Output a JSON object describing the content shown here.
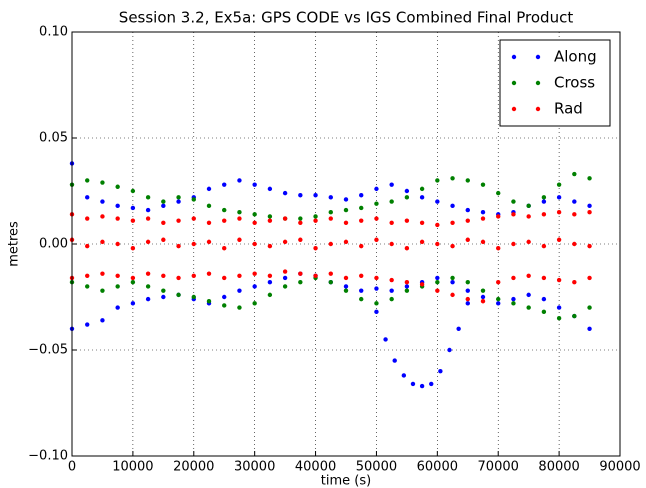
{
  "chart_data": {
    "type": "scatter",
    "title": "Session 3.2, Ex5a: GPS CODE vs IGS Combined Final Product",
    "x_label": "time (s)",
    "y_label": "metres",
    "xlim": [
      0,
      90000
    ],
    "xticks": [
      0,
      10000,
      20000,
      30000,
      40000,
      50000,
      60000,
      70000,
      80000,
      90000
    ],
    "ylim": [
      -0.1,
      0.1
    ],
    "yticks": [
      {
        "value": -0.1,
        "label": "−0.10"
      },
      {
        "value": -0.05,
        "label": "−0.05"
      },
      {
        "value": 0,
        "label": "0.00"
      },
      {
        "value": 0.05,
        "label": "0.05"
      },
      {
        "value": 0.1,
        "label": "0.10"
      }
    ],
    "grid": true,
    "legend": "upper right",
    "series": [
      {
        "name": "Along",
        "color": "#0000ff",
        "x": [
          0,
          2500,
          5000,
          7500,
          10000,
          12500,
          15000,
          17500,
          20000,
          22500,
          25000,
          27500,
          30000,
          32500,
          35000,
          37500,
          40000,
          42500,
          45000,
          47500,
          50000,
          52500,
          55000,
          57500,
          60000,
          62500,
          65000,
          67500,
          70000,
          72500,
          75000,
          77500,
          80000,
          82500,
          85000,
          0,
          2500,
          5000,
          7500,
          10000,
          12500,
          15000,
          17500,
          20000,
          22500,
          25000,
          27500,
          30000,
          32500,
          35000,
          37500,
          40000,
          42500,
          45000,
          47500,
          50000,
          52500,
          55000,
          57500,
          60000,
          62500,
          65000,
          67500,
          70000,
          72500,
          75000,
          77500,
          80000,
          82500,
          85000,
          50000,
          51500,
          53000,
          54500,
          56000,
          57500,
          59000,
          60500,
          62000,
          63500,
          65000
        ],
        "values": [
          0.038,
          0.022,
          0.02,
          0.018,
          0.017,
          0.016,
          0.018,
          0.02,
          0.022,
          0.026,
          0.028,
          0.03,
          0.028,
          0.026,
          0.024,
          0.023,
          0.023,
          0.022,
          0.021,
          0.023,
          0.026,
          0.028,
          0.025,
          0.022,
          0.02,
          0.018,
          0.016,
          0.015,
          0.014,
          0.015,
          0.018,
          0.02,
          0.022,
          0.02,
          0.018,
          -0.04,
          -0.038,
          -0.036,
          -0.03,
          -0.028,
          -0.026,
          -0.025,
          -0.024,
          -0.026,
          -0.028,
          -0.025,
          -0.022,
          -0.02,
          -0.018,
          -0.016,
          -0.014,
          -0.015,
          -0.018,
          -0.02,
          -0.022,
          -0.021,
          -0.022,
          -0.02,
          -0.018,
          -0.016,
          -0.018,
          -0.022,
          -0.025,
          -0.028,
          -0.026,
          -0.024,
          -0.026,
          -0.03,
          -0.034,
          -0.04,
          -0.032,
          -0.045,
          -0.055,
          -0.062,
          -0.066,
          -0.067,
          -0.066,
          -0.06,
          -0.05,
          -0.04,
          -0.028
        ]
      },
      {
        "name": "Cross",
        "color": "#008000",
        "x": [
          0,
          2500,
          5000,
          7500,
          10000,
          12500,
          15000,
          17500,
          20000,
          22500,
          25000,
          27500,
          30000,
          32500,
          35000,
          37500,
          40000,
          42500,
          45000,
          47500,
          50000,
          52500,
          55000,
          57500,
          60000,
          62500,
          65000,
          67500,
          70000,
          72500,
          75000,
          77500,
          80000,
          82500,
          85000,
          0,
          2500,
          5000,
          7500,
          10000,
          12500,
          15000,
          17500,
          20000,
          22500,
          25000,
          27500,
          30000,
          32500,
          35000,
          37500,
          40000,
          42500,
          45000,
          47500,
          50000,
          52500,
          55000,
          57500,
          60000,
          62500,
          65000,
          67500,
          70000,
          72500,
          75000,
          77500,
          80000,
          82500,
          85000
        ],
        "values": [
          0.028,
          0.03,
          0.029,
          0.027,
          0.025,
          0.022,
          0.02,
          0.022,
          0.021,
          0.018,
          0.016,
          0.015,
          0.014,
          0.013,
          0.012,
          0.012,
          0.013,
          0.015,
          0.016,
          0.017,
          0.019,
          0.02,
          0.022,
          0.026,
          0.03,
          0.031,
          0.03,
          0.028,
          0.024,
          0.02,
          0.018,
          0.022,
          0.028,
          0.033,
          0.031,
          -0.018,
          -0.02,
          -0.022,
          -0.02,
          -0.018,
          -0.02,
          -0.022,
          -0.024,
          -0.025,
          -0.027,
          -0.029,
          -0.03,
          -0.028,
          -0.024,
          -0.02,
          -0.018,
          -0.016,
          -0.018,
          -0.022,
          -0.026,
          -0.028,
          -0.026,
          -0.022,
          -0.02,
          -0.018,
          -0.016,
          -0.018,
          -0.022,
          -0.026,
          -0.028,
          -0.03,
          -0.032,
          -0.035,
          -0.034,
          -0.03
        ]
      },
      {
        "name": "Rad",
        "color": "#ff0000",
        "x": [
          0,
          2500,
          5000,
          7500,
          10000,
          12500,
          15000,
          17500,
          20000,
          22500,
          25000,
          27500,
          30000,
          32500,
          35000,
          37500,
          40000,
          42500,
          45000,
          47500,
          50000,
          52500,
          55000,
          57500,
          60000,
          62500,
          65000,
          67500,
          70000,
          72500,
          75000,
          77500,
          80000,
          82500,
          85000,
          0,
          2500,
          5000,
          7500,
          10000,
          12500,
          15000,
          17500,
          20000,
          22500,
          25000,
          27500,
          30000,
          32500,
          35000,
          37500,
          40000,
          42500,
          45000,
          47500,
          50000,
          52500,
          55000,
          57500,
          60000,
          62500,
          65000,
          67500,
          70000,
          72500,
          75000,
          77500,
          80000,
          82500,
          85000,
          0,
          2500,
          5000,
          7500,
          10000,
          12500,
          15000,
          17500,
          20000,
          22500,
          25000,
          27500,
          30000,
          32500,
          35000,
          37500,
          40000,
          42500,
          45000,
          47500,
          50000,
          52500,
          55000,
          57500,
          60000,
          62500,
          65000,
          67500,
          70000,
          72500,
          75000,
          77500,
          80000,
          82500,
          85000
        ],
        "values": [
          0.014,
          0.012,
          0.013,
          0.012,
          0.011,
          0.012,
          0.01,
          0.011,
          0.012,
          0.01,
          0.011,
          0.012,
          0.01,
          0.011,
          0.012,
          0.01,
          0.011,
          0.012,
          0.01,
          0.011,
          0.012,
          0.01,
          0.011,
          0.01,
          0.009,
          0.01,
          0.011,
          0.012,
          0.013,
          0.014,
          0.013,
          0.014,
          0.015,
          0.014,
          0.015,
          0.002,
          -0.001,
          0.001,
          0,
          -0.002,
          0.001,
          0.002,
          -0.001,
          0,
          0.001,
          -0.002,
          0.002,
          0,
          -0.001,
          0.001,
          0.002,
          -0.002,
          0,
          0.001,
          -0.001,
          0.002,
          0,
          -0.002,
          0.001,
          0,
          -0.001,
          0.002,
          0.001,
          -0.002,
          0,
          0.001,
          -0.001,
          0.002,
          0,
          -0.001,
          -0.016,
          -0.015,
          -0.014,
          -0.015,
          -0.016,
          -0.014,
          -0.015,
          -0.016,
          -0.015,
          -0.014,
          -0.016,
          -0.015,
          -0.014,
          -0.015,
          -0.013,
          -0.014,
          -0.015,
          -0.014,
          -0.016,
          -0.015,
          -0.016,
          -0.017,
          -0.018,
          -0.019,
          -0.022,
          -0.024,
          -0.026,
          -0.027,
          -0.018,
          -0.016,
          -0.015,
          -0.016,
          -0.017,
          -0.018,
          -0.016
        ]
      }
    ]
  }
}
